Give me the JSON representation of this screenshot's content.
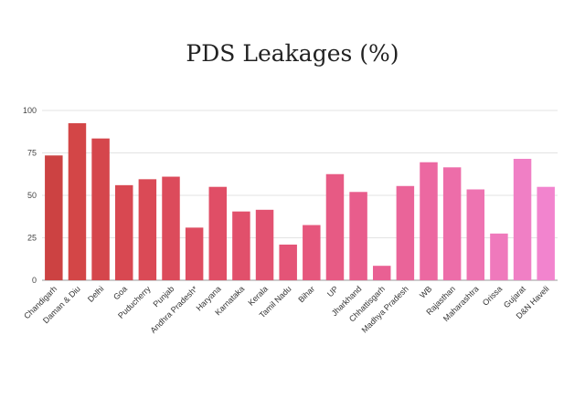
{
  "chart_data": {
    "type": "bar",
    "title": "PDS Leakages (%)",
    "xlabel": "",
    "ylabel": "",
    "ylim": [
      0,
      100
    ],
    "yticks": [
      0,
      25,
      50,
      75,
      100
    ],
    "grid": true,
    "legend": "none",
    "categories": [
      "Chandigarh",
      "Daman & Diu",
      "Delhi",
      "Goa",
      "Puducherry",
      "Punjab",
      "Andhra Pradesh*",
      "Haryana",
      "Karnataka",
      "Kerala",
      "Tamil Nadu",
      "Bihar",
      "UP",
      "Jharkhand",
      "Chhattisgarh",
      "Madhya Pradesh",
      "WB",
      "Rajasthan",
      "Maharashtra",
      "Orissa",
      "Gujarat",
      "D&N Haveli"
    ],
    "values": [
      73.5,
      92.5,
      83.5,
      56,
      59.5,
      61,
      31,
      55,
      40.5,
      41.5,
      21,
      32.5,
      62.5,
      52,
      8.5,
      55.5,
      69.5,
      66.5,
      53.5,
      27.5,
      71.5,
      55
    ],
    "colors": [
      "#cc4242",
      "#d34647",
      "#d5464c",
      "#d84851",
      "#da4a56",
      "#dc4b5b",
      "#de4d61",
      "#e04e66",
      "#e1506b",
      "#e25271",
      "#e45477",
      "#e6577d",
      "#e75a84",
      "#e85d8c",
      "#e96093",
      "#ea6499",
      "#ec68a1",
      "#ed6da9",
      "#ee73b1",
      "#ef79bc",
      "#f07fc5",
      "#f284ce"
    ]
  }
}
